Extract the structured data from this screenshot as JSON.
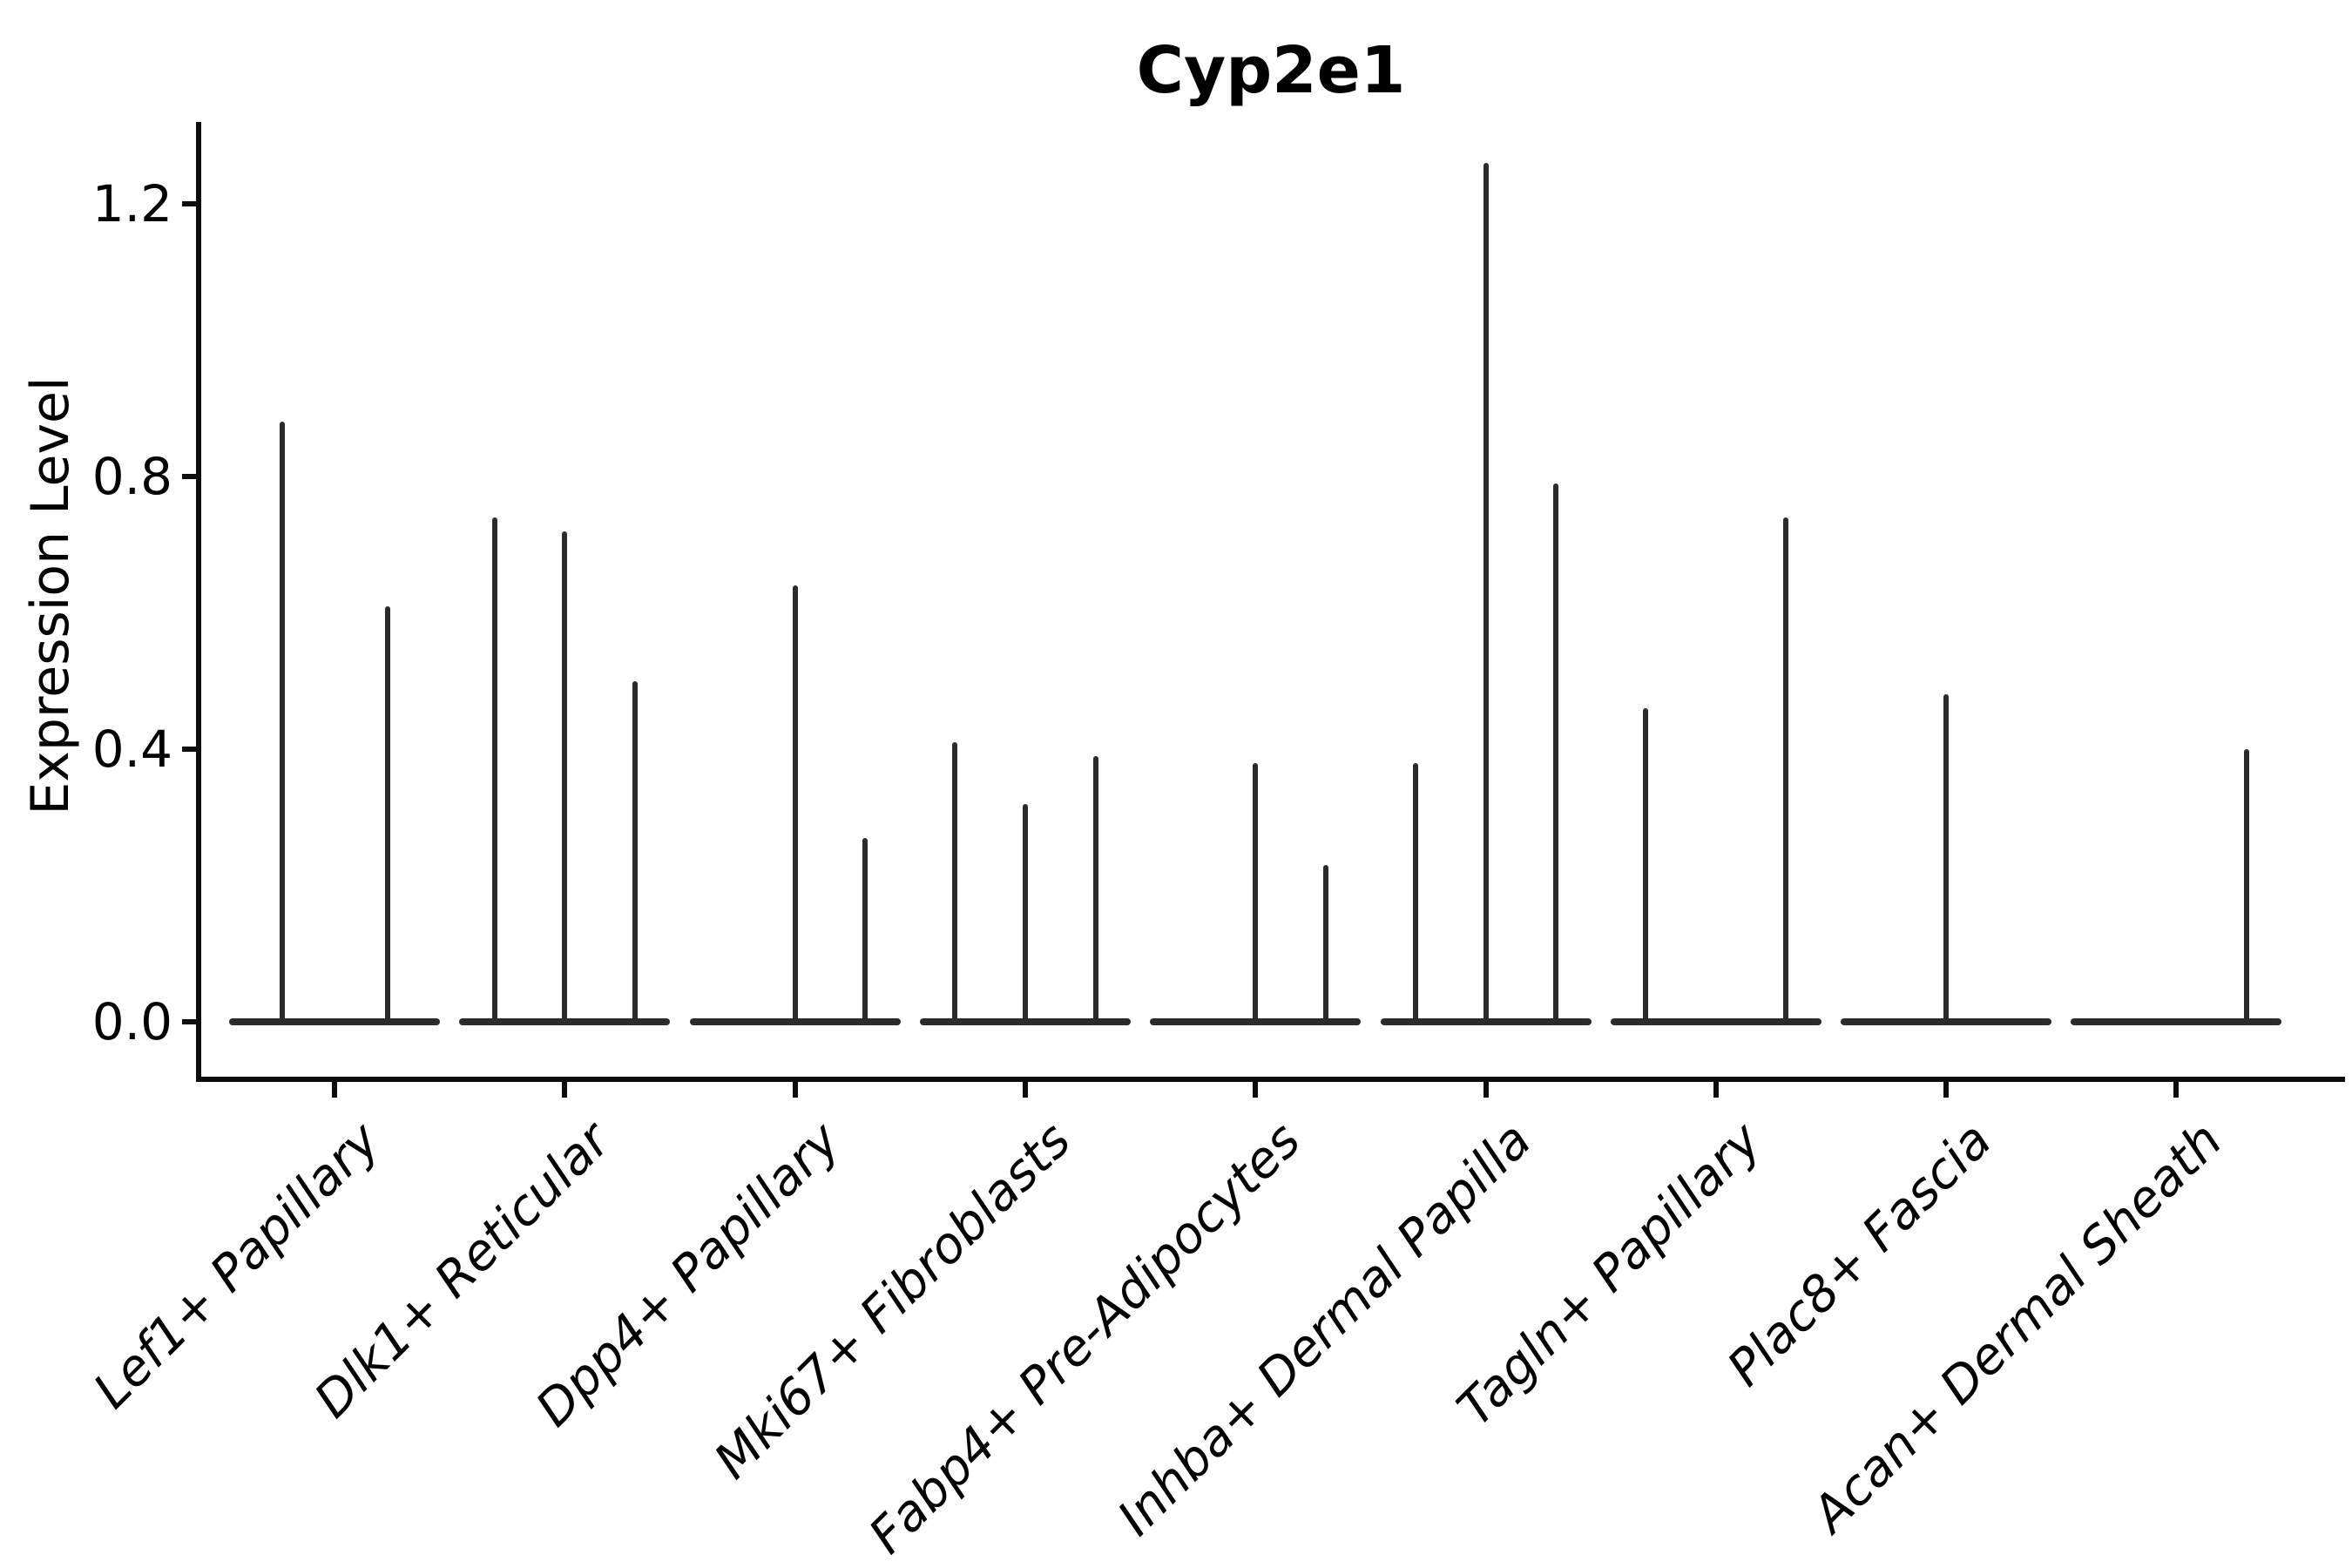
{
  "chart_data": {
    "type": "violin",
    "title": "Cyp2e1",
    "ylabel": "Expression Level",
    "xlabel": "",
    "background": "#ffffff",
    "violin_color": "#2b2b2b",
    "axis_color": "#0d0d0d",
    "grid": false,
    "legend": false,
    "ylim": [
      -0.08,
      1.32
    ],
    "ytick_labels": [
      "0.0",
      "0.4",
      "0.8",
      "1.2"
    ],
    "ytick_values": [
      0.0,
      0.4,
      0.8,
      1.2
    ],
    "categories": [
      "Lef1+ Papillary",
      "Dlk1+ Reticular",
      "Dpp4+ Papillary",
      "Mki67+ Fibroblasts",
      "Fabp4+ Pre-Adipocytes",
      "Inhba+ Dermal Papilla",
      "Tagln+ Papillary",
      "Plac8+ Fascia",
      "Acan+ Dermal Sheath"
    ],
    "groups": [
      {
        "category": "Lef1+ Papillary",
        "spike_max_values": [
          0.88,
          0.61
        ]
      },
      {
        "category": "Dlk1+ Reticular",
        "spike_max_values": [
          0.74,
          0.72,
          0.5
        ]
      },
      {
        "category": "Dpp4+ Papillary",
        "spike_max_values": [
          0,
          0.64,
          0.27
        ]
      },
      {
        "category": "Mki67+ Fibroblasts",
        "spike_max_values": [
          0.41,
          0.32,
          0.39
        ]
      },
      {
        "category": "Fabp4+ Pre-Adipocytes",
        "spike_max_values": [
          0,
          0.38,
          0.23
        ]
      },
      {
        "category": "Inhba+ Dermal Papilla",
        "spike_max_values": [
          0.38,
          1.26,
          0.79
        ]
      },
      {
        "category": "Tagln+ Papillary",
        "spike_max_values": [
          0.46,
          0,
          0.74
        ]
      },
      {
        "category": "Plac8+ Fascia",
        "spike_max_values": [
          0,
          0.48,
          0
        ]
      },
      {
        "category": "Acan+ Dermal Sheath",
        "spike_max_values": [
          0,
          0,
          0.4
        ]
      }
    ]
  }
}
